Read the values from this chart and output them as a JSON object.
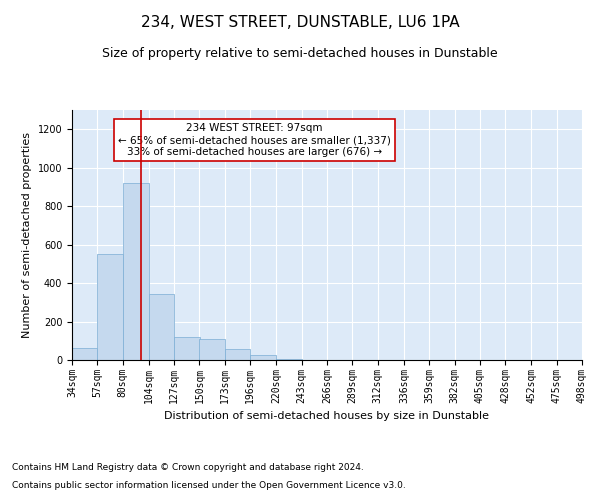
{
  "title": "234, WEST STREET, DUNSTABLE, LU6 1PA",
  "subtitle": "Size of property relative to semi-detached houses in Dunstable",
  "xlabel": "Distribution of semi-detached houses by size in Dunstable",
  "ylabel": "Number of semi-detached properties",
  "footnote1": "Contains HM Land Registry data © Crown copyright and database right 2024.",
  "footnote2": "Contains public sector information licensed under the Open Government Licence v3.0.",
  "bar_color": "#c5d9ee",
  "bar_edge_color": "#7aadd4",
  "background_color": "#ddeaf8",
  "grid_color": "#ffffff",
  "property_line_x": 97,
  "annotation_text": "234 WEST STREET: 97sqm\n← 65% of semi-detached houses are smaller (1,337)\n33% of semi-detached houses are larger (676) →",
  "annotation_box_color": "#ffffff",
  "annotation_box_edge": "#cc0000",
  "red_line_color": "#cc0000",
  "bin_edges": [
    34,
    57,
    80,
    104,
    127,
    150,
    173,
    196,
    220,
    243,
    266,
    289,
    312,
    336,
    359,
    382,
    405,
    428,
    452,
    475,
    498
  ],
  "bar_heights": [
    65,
    552,
    920,
    345,
    120,
    110,
    55,
    25,
    5,
    0,
    0,
    0,
    0,
    0,
    0,
    0,
    0,
    0,
    0,
    0
  ],
  "ylim": [
    0,
    1300
  ],
  "yticks": [
    0,
    200,
    400,
    600,
    800,
    1000,
    1200
  ],
  "title_fontsize": 11,
  "subtitle_fontsize": 9,
  "axis_label_fontsize": 8,
  "tick_fontsize": 7,
  "annotation_fontsize": 7.5,
  "footnote_fontsize": 6.5
}
